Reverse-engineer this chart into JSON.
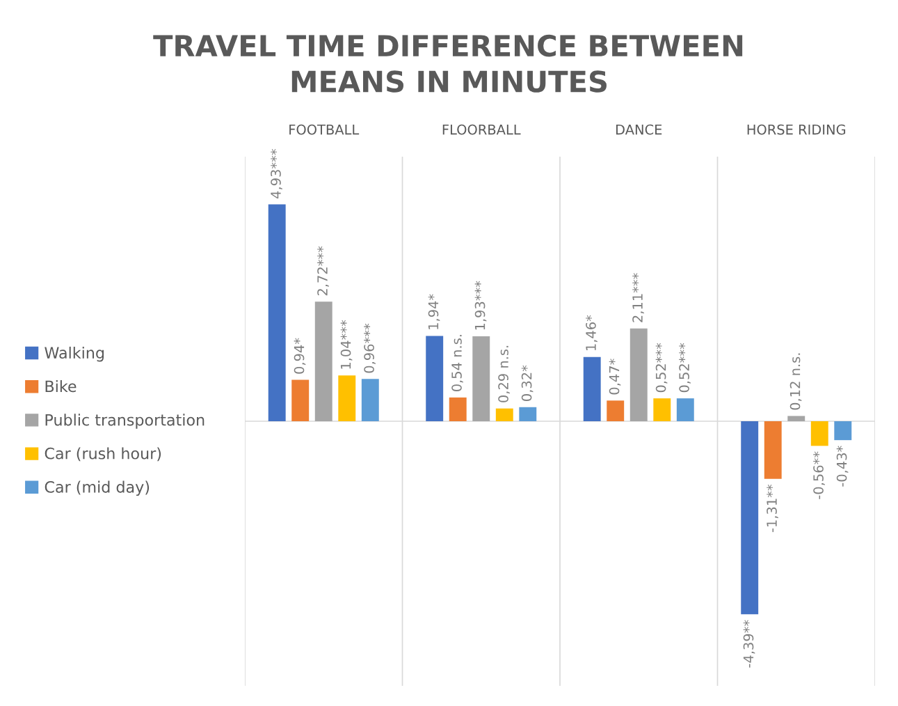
{
  "chart_data": {
    "type": "bar",
    "title": "TRAVEL TIME DIFFERENCE BETWEEN\nMEANS IN MINUTES",
    "categories": [
      "FOOTBALL",
      "FLOORBALL",
      "DANCE",
      "HORSE RIDING"
    ],
    "series": [
      {
        "name": "Walking",
        "color": "#4472c4",
        "values": [
          4.93,
          1.94,
          1.46,
          -4.39
        ],
        "value_labels": [
          "4,93***",
          "1,94*",
          "1,46*",
          "-4,39**"
        ]
      },
      {
        "name": "Bike",
        "color": "#ed7d31",
        "values": [
          0.94,
          0.54,
          0.47,
          -1.31
        ],
        "value_labels": [
          "0,94*",
          "0,54 n.s.",
          "0,47*",
          "-1,31**"
        ]
      },
      {
        "name": "Public transportation",
        "color": "#a5a5a5",
        "values": [
          2.72,
          1.93,
          2.11,
          0.12
        ],
        "value_labels": [
          "2,72***",
          "1,93***",
          "2,11***",
          "0,12 n.s."
        ]
      },
      {
        "name": "Car (rush hour)",
        "color": "#ffc000",
        "values": [
          1.04,
          0.29,
          0.52,
          -0.56
        ],
        "value_labels": [
          "1,04***",
          "0,29 n.s.",
          "0,52***",
          "-0,56**"
        ]
      },
      {
        "name": "Car (mid day)",
        "color": "#5b9bd5",
        "values": [
          0.96,
          0.32,
          0.52,
          -0.43
        ],
        "value_labels": [
          "0,96***",
          "0,32*",
          "0,52***",
          "-0,43*"
        ]
      }
    ],
    "grid": "x",
    "legend": "left"
  }
}
